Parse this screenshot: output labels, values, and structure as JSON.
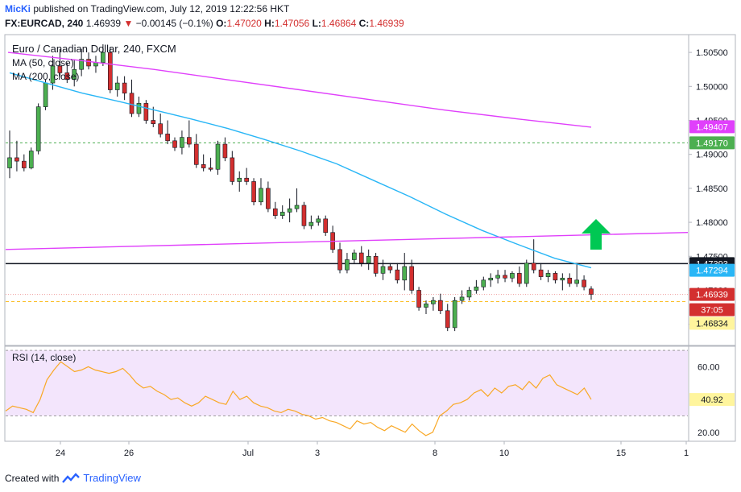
{
  "header": {
    "user": "MicKi",
    "published_text": "published on TradingView.com, July 12, 2019 12:22:56 HKT",
    "symbol": "FX:EURCAD, 240",
    "last": "1.46939",
    "change": "−0.00145 (−0.1%)",
    "o_label": "O:",
    "o": "1.47020",
    "h_label": "H:",
    "h": "1.47056",
    "l_label": "L:",
    "l": "1.46864",
    "c_label": "C:",
    "c": "1.46939"
  },
  "chart_data": [
    {
      "type": "candlestick",
      "title": "Euro / Canadian Dollar, 240, FXCM",
      "indicators": [
        "MA (50, close)",
        "MA (200, close)"
      ],
      "ylim": [
        1.462,
        1.5075
      ],
      "y_ticks": [
        "1.50500",
        "1.50000",
        "1.49500",
        "1.49000",
        "1.48500",
        "1.48000",
        "1.47500",
        "1.47000",
        "1.46500"
      ],
      "x_ticks": [
        "24",
        "26",
        "Jul",
        "3",
        "8",
        "10",
        "15",
        "1"
      ],
      "price_labels": [
        {
          "value": "1.49407",
          "color": "#e040fb"
        },
        {
          "value": "1.49170",
          "color": "#4caf50"
        },
        {
          "value": "1.47393",
          "color": "#131722"
        },
        {
          "value": "1.47294",
          "color": "#29b6f6"
        },
        {
          "value": "1.46939",
          "color": "#d32f2f"
        },
        {
          "value": "37:05",
          "color": "#d32f2f"
        },
        {
          "value": "1.46834",
          "color": "#fbc02d"
        }
      ],
      "levels": {
        "green_dashed": 1.4917,
        "black_solid": 1.47393,
        "yellow_dashed": 1.46834,
        "red_dotted": 1.46939
      },
      "ohlc": [
        [
          1.488,
          1.4935,
          1.4865,
          1.4895
        ],
        [
          1.4895,
          1.492,
          1.4875,
          1.489
        ],
        [
          1.489,
          1.49,
          1.4875,
          1.488
        ],
        [
          1.488,
          1.491,
          1.4878,
          1.4905
        ],
        [
          1.4905,
          1.4975,
          1.49,
          1.497
        ],
        [
          1.497,
          1.501,
          1.4965,
          1.5005
        ],
        [
          1.5005,
          1.5045,
          1.4995,
          1.503
        ],
        [
          1.503,
          1.5055,
          1.5015,
          1.502
        ],
        [
          1.502,
          1.5035,
          1.5005,
          1.501
        ],
        [
          1.501,
          1.504,
          1.5,
          1.5025
        ],
        [
          1.5025,
          1.5055,
          1.5015,
          1.504
        ],
        [
          1.504,
          1.505,
          1.5025,
          1.503
        ],
        [
          1.503,
          1.5045,
          1.502,
          1.5035
        ],
        [
          1.5035,
          1.5062,
          1.503,
          1.505
        ],
        [
          1.505,
          1.5058,
          1.499,
          1.4995
        ],
        [
          1.4995,
          1.5015,
          1.4985,
          1.5005
        ],
        [
          1.5005,
          1.5015,
          1.498,
          1.499
        ],
        [
          1.499,
          1.501,
          1.4955,
          1.496
        ],
        [
          1.496,
          1.4985,
          1.4955,
          1.4975
        ],
        [
          1.4975,
          1.498,
          1.4945,
          1.495
        ],
        [
          1.495,
          1.497,
          1.494,
          1.4945
        ],
        [
          1.4945,
          1.496,
          1.4925,
          1.493
        ],
        [
          1.493,
          1.495,
          1.4915,
          1.492
        ],
        [
          1.492,
          1.4925,
          1.4905,
          1.491
        ],
        [
          1.491,
          1.4935,
          1.49,
          1.4925
        ],
        [
          1.4925,
          1.495,
          1.491,
          1.4915
        ],
        [
          1.4915,
          1.493,
          1.488,
          1.4885
        ],
        [
          1.4885,
          1.49,
          1.4875,
          1.488
        ],
        [
          1.488,
          1.4895,
          1.4875,
          1.4878
        ],
        [
          1.4878,
          1.492,
          1.487,
          1.4915
        ],
        [
          1.4915,
          1.4925,
          1.489,
          1.4895
        ],
        [
          1.4895,
          1.4905,
          1.4855,
          1.486
        ],
        [
          1.486,
          1.4875,
          1.4845,
          1.4865
        ],
        [
          1.4865,
          1.488,
          1.4855,
          1.486
        ],
        [
          1.486,
          1.4865,
          1.4825,
          1.483
        ],
        [
          1.483,
          1.4865,
          1.4825,
          1.485
        ],
        [
          1.485,
          1.486,
          1.4815,
          1.482
        ],
        [
          1.482,
          1.483,
          1.4805,
          1.481
        ],
        [
          1.481,
          1.4825,
          1.4805,
          1.4815
        ],
        [
          1.4815,
          1.4835,
          1.48,
          1.482
        ],
        [
          1.482,
          1.485,
          1.4815,
          1.4825
        ],
        [
          1.4825,
          1.483,
          1.479,
          1.4795
        ],
        [
          1.4795,
          1.481,
          1.479,
          1.48
        ],
        [
          1.48,
          1.481,
          1.4795,
          1.4805
        ],
        [
          1.4805,
          1.481,
          1.478,
          1.4785
        ],
        [
          1.4785,
          1.4795,
          1.4755,
          1.476
        ],
        [
          1.476,
          1.477,
          1.4725,
          1.473
        ],
        [
          1.473,
          1.4755,
          1.4725,
          1.4745
        ],
        [
          1.4745,
          1.476,
          1.474,
          1.4755
        ],
        [
          1.4755,
          1.4765,
          1.4735,
          1.474
        ],
        [
          1.474,
          1.476,
          1.473,
          1.475
        ],
        [
          1.475,
          1.4755,
          1.472,
          1.4725
        ],
        [
          1.4725,
          1.4745,
          1.4715,
          1.4735
        ],
        [
          1.4735,
          1.474,
          1.4725,
          1.473
        ],
        [
          1.473,
          1.474,
          1.471,
          1.4715
        ],
        [
          1.4715,
          1.4755,
          1.47,
          1.4735
        ],
        [
          1.4735,
          1.4745,
          1.4695,
          1.47
        ],
        [
          1.47,
          1.4705,
          1.467,
          1.4675
        ],
        [
          1.4675,
          1.4685,
          1.4665,
          1.468
        ],
        [
          1.468,
          1.469,
          1.467,
          1.4685
        ],
        [
          1.4685,
          1.4695,
          1.4665,
          1.467
        ],
        [
          1.467,
          1.468,
          1.464,
          1.4645
        ],
        [
          1.4645,
          1.469,
          1.464,
          1.4685
        ],
        [
          1.4685,
          1.47,
          1.468,
          1.469
        ],
        [
          1.469,
          1.4705,
          1.4685,
          1.47
        ],
        [
          1.47,
          1.4715,
          1.4695,
          1.4705
        ],
        [
          1.4705,
          1.472,
          1.47,
          1.4715
        ],
        [
          1.4715,
          1.4725,
          1.4705,
          1.4718
        ],
        [
          1.4718,
          1.473,
          1.471,
          1.4722
        ],
        [
          1.4722,
          1.473,
          1.4712,
          1.4718
        ],
        [
          1.4718,
          1.4728,
          1.4712,
          1.4725
        ],
        [
          1.4725,
          1.4735,
          1.4705,
          1.471
        ],
        [
          1.471,
          1.4745,
          1.4705,
          1.474
        ],
        [
          1.474,
          1.4775,
          1.4725,
          1.473
        ],
        [
          1.473,
          1.474,
          1.4715,
          1.472
        ],
        [
          1.472,
          1.473,
          1.4712,
          1.4725
        ],
        [
          1.4725,
          1.4728,
          1.471,
          1.4715
        ],
        [
          1.4715,
          1.4725,
          1.47,
          1.4718
        ],
        [
          1.4718,
          1.4725,
          1.4705,
          1.471
        ],
        [
          1.471,
          1.474,
          1.4705,
          1.4715
        ],
        [
          1.4715,
          1.4722,
          1.47,
          1.4705
        ],
        [
          1.4702,
          1.4706,
          1.4686,
          1.4694
        ]
      ],
      "ma50": [
        1.502,
        1.5005,
        1.499,
        1.4978,
        1.4965,
        1.4952,
        1.4938,
        1.4922,
        1.4905,
        1.4886,
        1.4862,
        1.4838,
        1.4812,
        1.4788,
        1.4767,
        1.4747,
        1.4733
      ],
      "ma200": [
        1.505,
        1.5038,
        1.5025,
        1.501,
        1.4995,
        1.498,
        1.4965,
        1.4952,
        1.494
      ],
      "ma200_long": [
        1.476,
        1.4785
      ]
    },
    {
      "type": "line",
      "title": "RSI (14, close)",
      "value_label": "40.92",
      "ylim": [
        15,
        72
      ],
      "y_ticks": [
        "60.00",
        "20.00"
      ],
      "band": [
        30,
        70
      ],
      "values": [
        33,
        36,
        35,
        34,
        32,
        40,
        52,
        58,
        63,
        60,
        57,
        58,
        60,
        58,
        57,
        56,
        57,
        59,
        55,
        50,
        47,
        48,
        45,
        43,
        40,
        41,
        38,
        36,
        38,
        42,
        40,
        38,
        37,
        45,
        40,
        42,
        38,
        36,
        35,
        33,
        32,
        34,
        33,
        31,
        30,
        28,
        29,
        27,
        26,
        24,
        22,
        27,
        25,
        26,
        23,
        21,
        24,
        22,
        20,
        25,
        21,
        18,
        20,
        30,
        33,
        37,
        38,
        40,
        44,
        46,
        42,
        47,
        44,
        48,
        49,
        46,
        51,
        47,
        53,
        55,
        49,
        47,
        45,
        43,
        47,
        40
      ]
    }
  ],
  "footer": {
    "created_with": "Created with",
    "brand": "TradingView"
  }
}
